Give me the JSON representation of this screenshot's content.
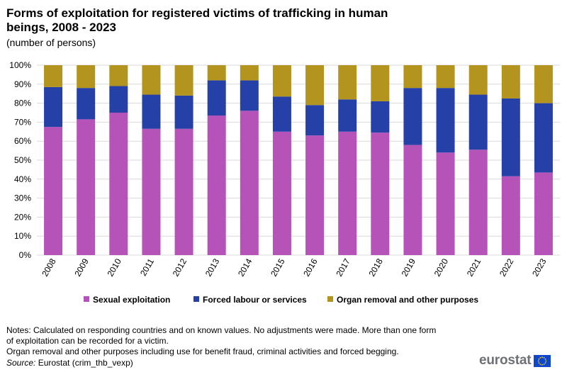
{
  "title_line1": "Forms of exploitation for registered victims of trafficking in human",
  "title_line2": "beings, 2008 - 2023",
  "subtitle": "(number  of persons)",
  "notes": {
    "line1": "Notes: Calculated on responding countries and on known values. No adjustments  were made. More than one form",
    "line2": "of exploitation can be recorded for a victim.",
    "line3": "Organ removal and other purposes including use for benefit fraud, criminal activities and forced begging."
  },
  "source": {
    "label": "Source:",
    "text": " Eurostat (crim_thb_vexp)"
  },
  "logo": {
    "text": "eurostat"
  },
  "colors": {
    "sexual": "#b553b8",
    "forced": "#2541a7",
    "organ": "#b3941f",
    "grid": "#d9d9d9"
  },
  "chart_data": {
    "type": "bar",
    "stacked": true,
    "title": "Forms of exploitation for registered victims of trafficking in human beings, 2008 - 2023",
    "subtitle": "(number  of persons)",
    "xlabel": "",
    "ylabel": "",
    "ylim": [
      0,
      100
    ],
    "yticks": [
      "0%",
      "10%",
      "20%",
      "30%",
      "40%",
      "50%",
      "60%",
      "70%",
      "80%",
      "90%",
      "100%"
    ],
    "legend_position": "bottom",
    "categories": [
      "2008",
      "2009",
      "2010",
      "2011",
      "2012",
      "2013",
      "2014",
      "2015",
      "2016",
      "2017",
      "2018",
      "2019",
      "2020",
      "2021",
      "2022",
      "2023"
    ],
    "series": [
      {
        "name": "Sexual exploitation",
        "values": [
          67.5,
          71.5,
          75,
          66.5,
          66.5,
          73.5,
          76,
          65,
          63,
          65,
          64.5,
          58,
          54,
          55.5,
          41.5,
          43.5
        ]
      },
      {
        "name": "Forced labour or services",
        "values": [
          21,
          16.5,
          14,
          18,
          17.5,
          18.5,
          16,
          18.5,
          16,
          17,
          16.5,
          30,
          34,
          29,
          41,
          36.5
        ]
      },
      {
        "name": "Organ removal and other purposes",
        "values": [
          11.5,
          12,
          11,
          15.5,
          16,
          8,
          8,
          16.5,
          21,
          18,
          19,
          12,
          12,
          15.5,
          17.5,
          20
        ]
      }
    ]
  }
}
